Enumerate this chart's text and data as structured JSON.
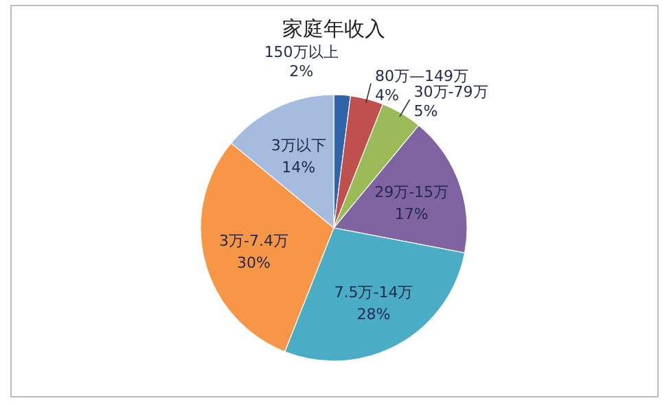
{
  "chart_data": {
    "type": "pie",
    "title": "家庭年收入",
    "categories": [
      "150万以上",
      "80万—149万",
      "30万-79万",
      "29万-15万",
      "7.5万-14万",
      "3万-7.4万",
      "3万以下"
    ],
    "values": [
      2,
      4,
      5,
      17,
      28,
      30,
      14
    ],
    "colors": [
      "#2f64a8",
      "#c0504d",
      "#9bbb59",
      "#8064a2",
      "#4bacc6",
      "#f79646",
      "#a5bcdf"
    ],
    "value_labels": [
      "2%",
      "4%",
      "5%",
      "17%",
      "28%",
      "30%",
      "14%"
    ]
  }
}
